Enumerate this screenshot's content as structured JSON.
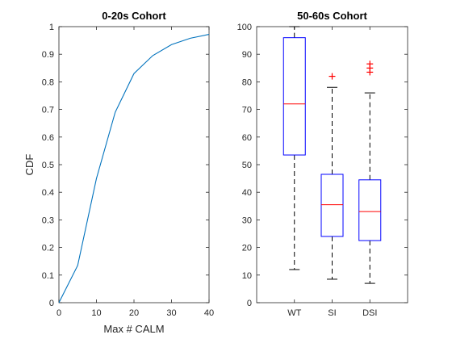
{
  "colors": {
    "line": "#0072BD",
    "box": "#0000FF",
    "median": "#FF0000",
    "outlier": "#FF0000"
  },
  "chart_data": [
    {
      "type": "line",
      "title": "0-20s Cohort",
      "xlabel": "Max # CALM",
      "ylabel": "CDF",
      "xlim": [
        0,
        40
      ],
      "ylim": [
        0,
        1
      ],
      "xticks": [
        0,
        10,
        20,
        30,
        40
      ],
      "yticks": [
        0,
        0.1,
        0.2,
        0.3,
        0.4,
        0.5,
        0.6,
        0.7,
        0.8,
        0.9,
        1
      ],
      "grid": false,
      "series": [
        {
          "x": [
            0,
            5,
            10,
            15,
            20,
            25,
            30,
            35,
            40
          ],
          "y": [
            0,
            0.135,
            0.45,
            0.69,
            0.83,
            0.895,
            0.935,
            0.958,
            0.972
          ]
        }
      ]
    },
    {
      "type": "box",
      "title": "50-60s Cohort",
      "xlabel": "",
      "ylabel": "",
      "ylim": [
        0,
        100
      ],
      "yticks": [
        0,
        10,
        20,
        30,
        40,
        50,
        60,
        70,
        80,
        90,
        100
      ],
      "grid": false,
      "categories": [
        "WT",
        "SI",
        "DSI"
      ],
      "boxes": [
        {
          "category": "WT",
          "whisker_low": 12,
          "q1": 53.5,
          "median": 72,
          "q3": 96,
          "whisker_high": 100,
          "outliers": []
        },
        {
          "category": "SI",
          "whisker_low": 8.5,
          "q1": 24,
          "median": 35.5,
          "q3": 46.5,
          "whisker_high": 78,
          "outliers": [
            82
          ]
        },
        {
          "category": "DSI",
          "whisker_low": 7,
          "q1": 22.5,
          "median": 33,
          "q3": 44.5,
          "whisker_high": 76,
          "outliers": [
            83.5,
            85,
            86.5
          ]
        }
      ]
    }
  ]
}
